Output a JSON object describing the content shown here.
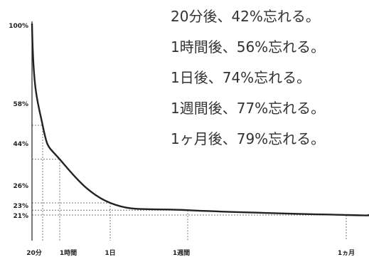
{
  "chart_data": {
    "type": "line",
    "title": "",
    "xlabel": "",
    "ylabel": "",
    "ylim": [
      0,
      100
    ],
    "y_ticks": [
      "100%",
      "58%",
      "44%",
      "26%",
      "23%",
      "21%"
    ],
    "x_ticks": [
      "20分",
      "1時間",
      "1日",
      "1週間",
      "1ヵ月"
    ],
    "points": [
      {
        "x": "0",
        "y": 100
      },
      {
        "x": "20分",
        "y": 58
      },
      {
        "x": "1時間",
        "y": 44
      },
      {
        "x": "1日",
        "y": 26
      },
      {
        "x": "1週間",
        "y": 23
      },
      {
        "x": "1ヵ月",
        "y": 21
      }
    ],
    "grid": "dashed at data points",
    "annotations": [
      "20分後、42%忘れる。",
      "1時間後、56%忘れる。",
      "1日後、74%忘れる。",
      "1週間後、77%忘れる。",
      "1ヶ月後、79%忘れる。"
    ]
  }
}
